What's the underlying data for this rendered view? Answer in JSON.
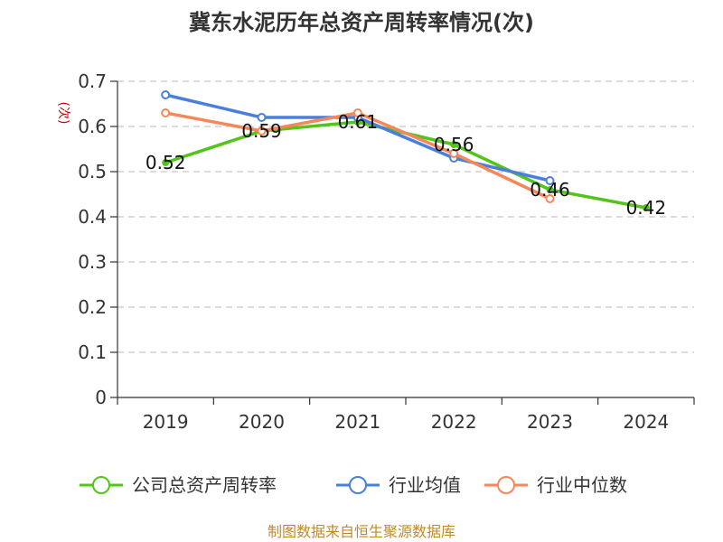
{
  "chart_data": {
    "type": "line",
    "title": "冀东水泥历年总资产周转率情况(次)",
    "ylabel": "(次)",
    "xlabel": "",
    "categories": [
      "2019",
      "2020",
      "2021",
      "2022",
      "2023",
      "2024"
    ],
    "ylim": [
      0,
      0.7
    ],
    "yticks": [
      0,
      0.1,
      0.2,
      0.3,
      0.4,
      0.5,
      0.6,
      0.7
    ],
    "ytick_labels": [
      "0",
      "0.1",
      "0.2",
      "0.3",
      "0.4",
      "0.5",
      "0.6",
      "0.7"
    ],
    "grid": true,
    "legend_position": "bottom",
    "series": [
      {
        "name": "公司总资产周转率",
        "color": "#52c41a",
        "values": [
          0.52,
          0.59,
          0.61,
          0.56,
          0.46,
          0.42
        ],
        "labels": [
          "0.52",
          "0.59",
          "0.61",
          "0.56",
          "0.46",
          "0.42"
        ]
      },
      {
        "name": "行业均值",
        "color": "#4a7fdc",
        "values": [
          0.67,
          0.62,
          0.62,
          0.53,
          0.48,
          null
        ]
      },
      {
        "name": "行业中位数",
        "color": "#f5875a",
        "values": [
          0.63,
          0.59,
          0.63,
          0.54,
          0.44,
          null
        ]
      }
    ]
  },
  "footer": {
    "source": "制图数据来自恒生聚源数据库"
  }
}
